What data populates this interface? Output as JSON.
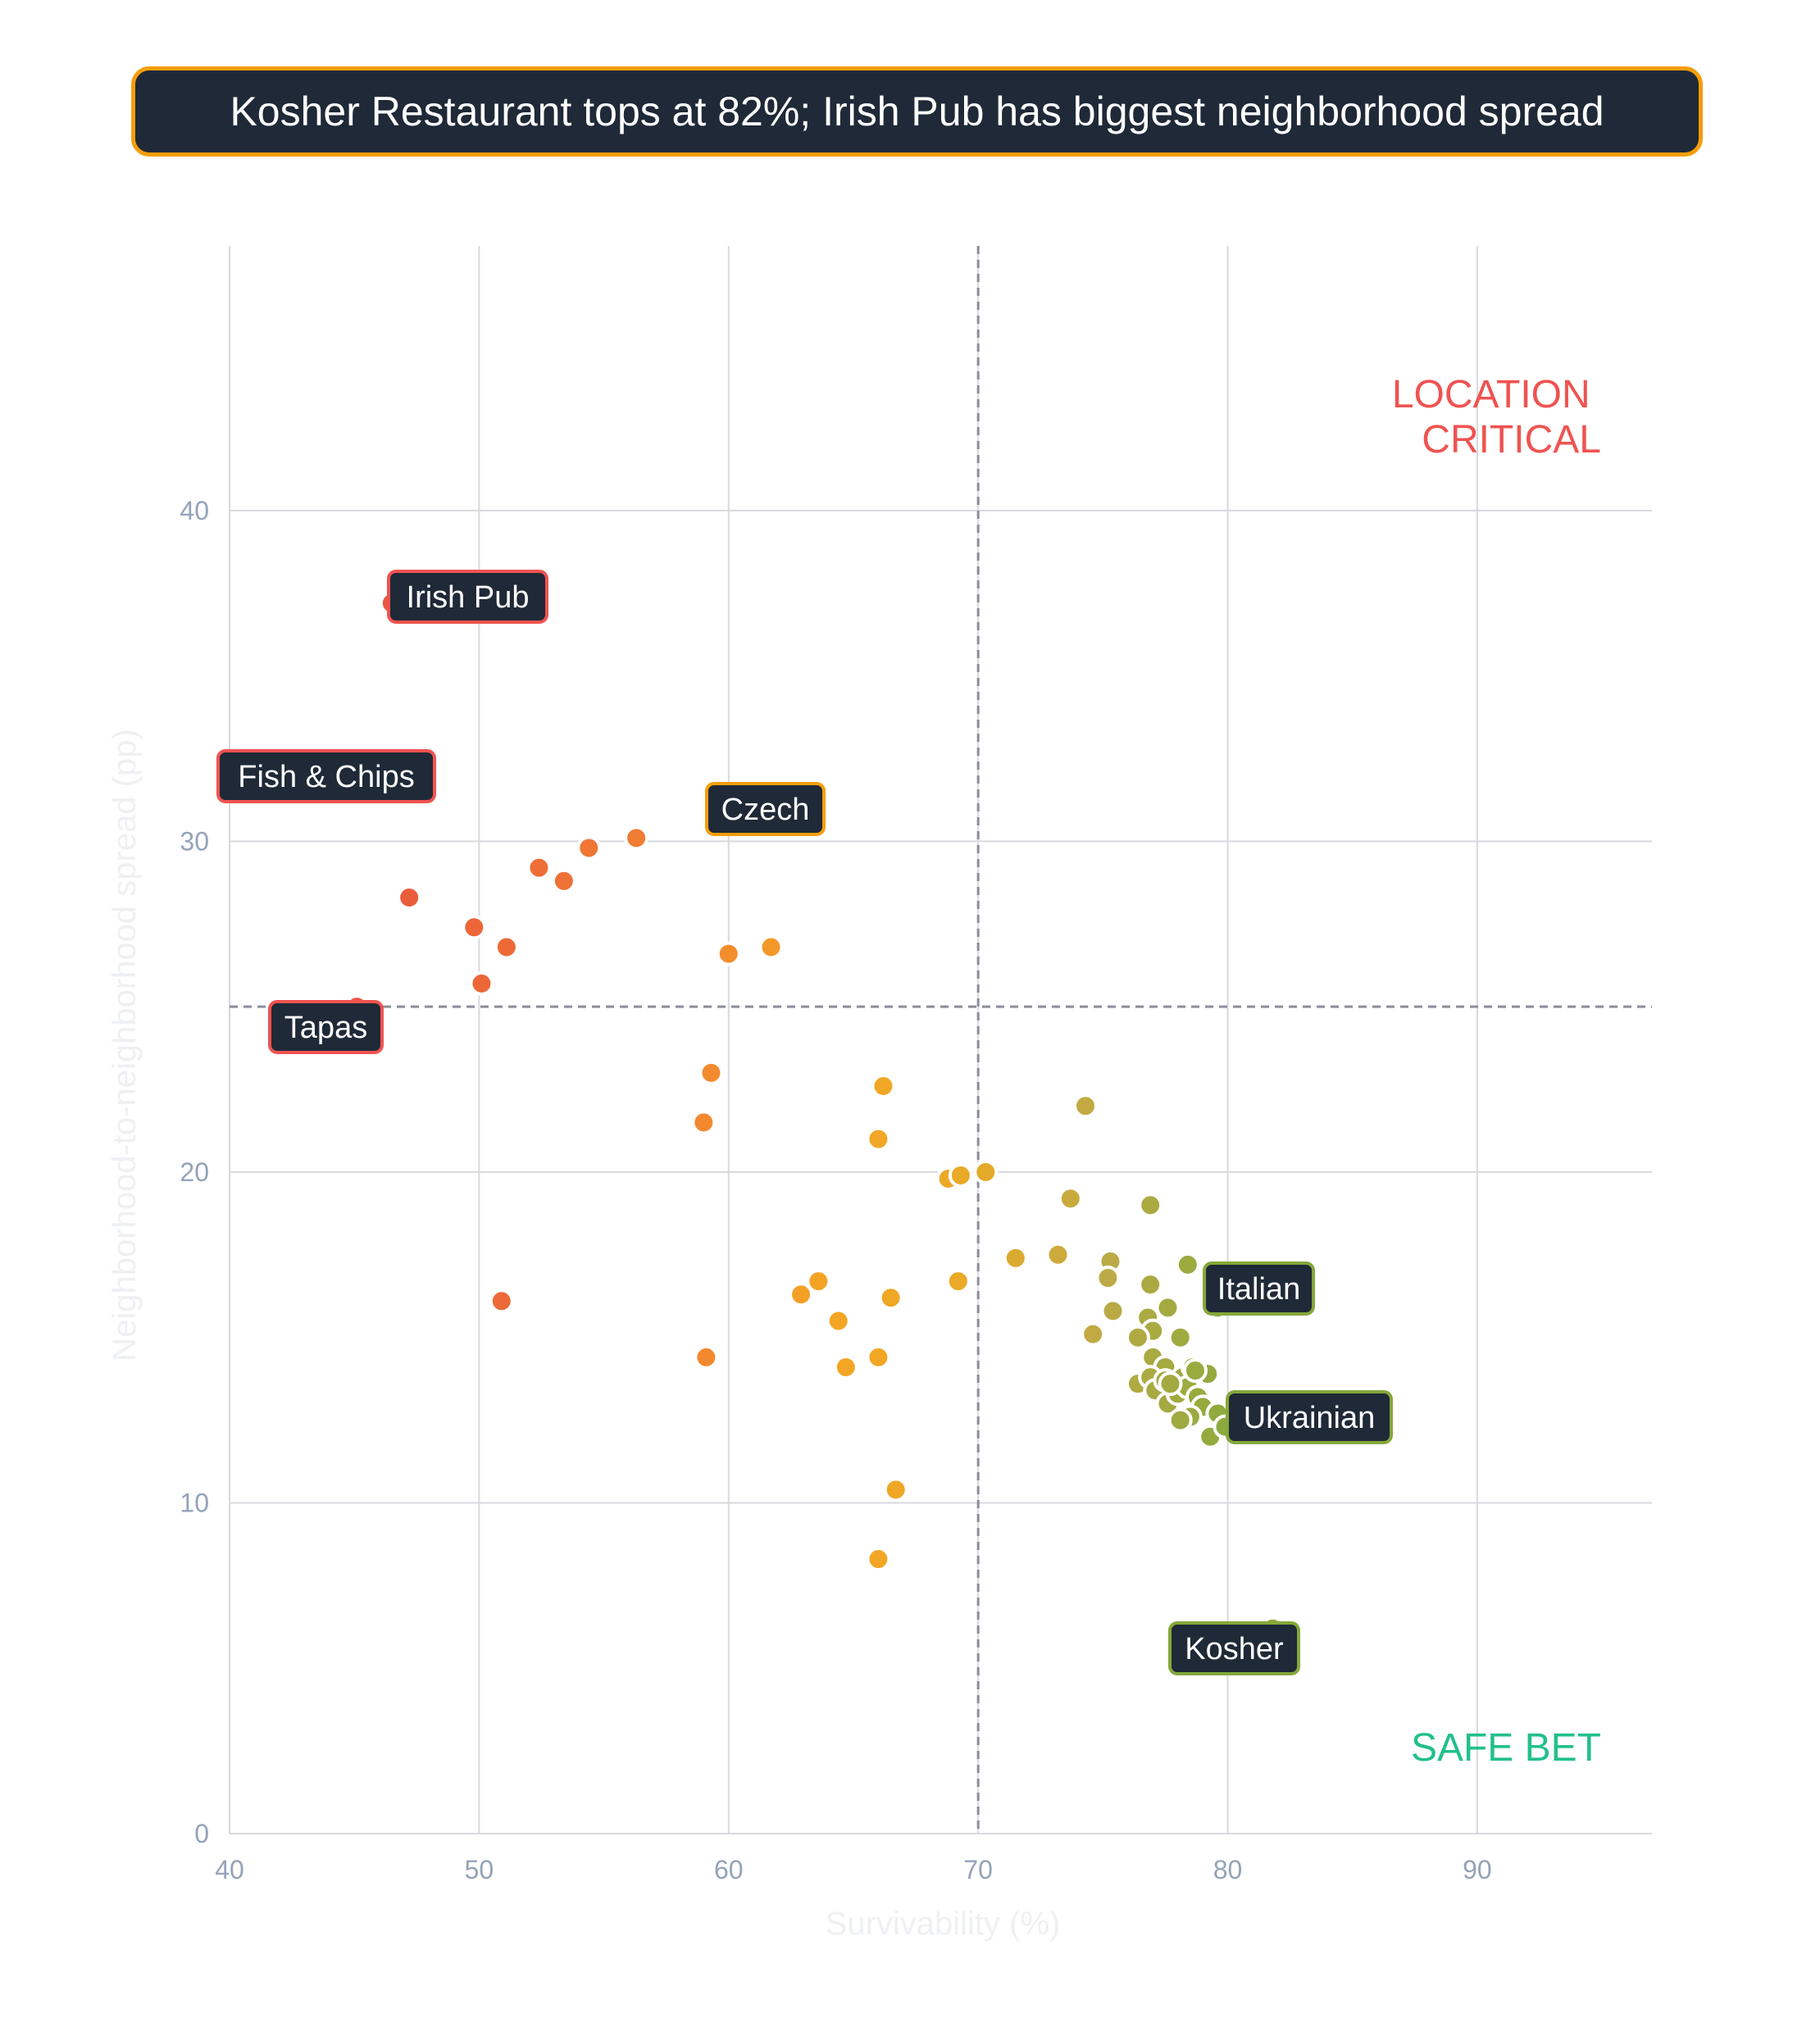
{
  "title": "Kosher Restaurant tops at 82%; Irish Pub has biggest neighborhood spread",
  "colors": {
    "title_bg": "#1f2937",
    "title_border": "#f59e0b",
    "location_critical": "#ef5350",
    "safe_bet": "#22c08a",
    "gridline": "#d7d9de",
    "reference_line": "#8b8e99"
  },
  "chart_data": {
    "type": "scatter",
    "title": "Kosher Restaurant tops at 82%; Irish Pub has biggest neighborhood spread",
    "xlabel": "Survivability (%)",
    "ylabel": "Neighborhood-to-neighborhood spread (pp)",
    "xlim": [
      40,
      97
    ],
    "ylim": [
      0,
      48
    ],
    "xticks": [
      40,
      50,
      60,
      70,
      80,
      90
    ],
    "yticks": [
      0,
      10,
      20,
      30,
      40
    ],
    "grid": true,
    "reference_lines": {
      "x": 70,
      "y": 25
    },
    "quadrant_labels": {
      "location_critical": [
        "LOCATION",
        "CRITICAL"
      ],
      "safe_bet": "SAFE BET"
    },
    "points": [
      {
        "x": 46.5,
        "y": 37.2
      },
      {
        "x": 45.8,
        "y": 32.5
      },
      {
        "x": 47.2,
        "y": 28.3
      },
      {
        "x": 49.8,
        "y": 27.4
      },
      {
        "x": 51.1,
        "y": 26.8
      },
      {
        "x": 50.1,
        "y": 25.7
      },
      {
        "x": 52.4,
        "y": 29.2
      },
      {
        "x": 53.4,
        "y": 28.8
      },
      {
        "x": 54.4,
        "y": 29.8
      },
      {
        "x": 56.3,
        "y": 30.1
      },
      {
        "x": 60.0,
        "y": 26.6
      },
      {
        "x": 61.7,
        "y": 26.8
      },
      {
        "x": 45.1,
        "y": 25.0
      },
      {
        "x": 50.9,
        "y": 16.1
      },
      {
        "x": 59.3,
        "y": 23.0
      },
      {
        "x": 59.0,
        "y": 21.5
      },
      {
        "x": 59.1,
        "y": 14.4
      },
      {
        "x": 62.9,
        "y": 16.3
      },
      {
        "x": 63.6,
        "y": 16.7
      },
      {
        "x": 64.4,
        "y": 15.5
      },
      {
        "x": 64.7,
        "y": 14.1
      },
      {
        "x": 66.0,
        "y": 14.4
      },
      {
        "x": 66.5,
        "y": 16.2
      },
      {
        "x": 66.0,
        "y": 21.0
      },
      {
        "x": 66.2,
        "y": 22.6
      },
      {
        "x": 66.7,
        "y": 10.4
      },
      {
        "x": 66.0,
        "y": 8.3
      },
      {
        "x": 68.8,
        "y": 19.8
      },
      {
        "x": 69.3,
        "y": 19.9
      },
      {
        "x": 70.3,
        "y": 20.0
      },
      {
        "x": 69.2,
        "y": 16.7
      },
      {
        "x": 71.5,
        "y": 17.4
      },
      {
        "x": 73.2,
        "y": 17.5
      },
      {
        "x": 73.7,
        "y": 19.2
      },
      {
        "x": 74.3,
        "y": 22.0
      },
      {
        "x": 75.3,
        "y": 17.3
      },
      {
        "x": 75.2,
        "y": 16.8
      },
      {
        "x": 75.4,
        "y": 15.8
      },
      {
        "x": 74.6,
        "y": 15.1
      },
      {
        "x": 76.9,
        "y": 19.0
      },
      {
        "x": 76.9,
        "y": 16.6
      },
      {
        "x": 77.6,
        "y": 15.9
      },
      {
        "x": 76.8,
        "y": 15.6
      },
      {
        "x": 77.0,
        "y": 15.2
      },
      {
        "x": 76.4,
        "y": 15.0
      },
      {
        "x": 77.0,
        "y": 14.4
      },
      {
        "x": 77.5,
        "y": 14.1
      },
      {
        "x": 78.1,
        "y": 15.0
      },
      {
        "x": 78.4,
        "y": 17.2
      },
      {
        "x": 79.6,
        "y": 15.9
      },
      {
        "x": 76.4,
        "y": 13.6
      },
      {
        "x": 76.9,
        "y": 13.8
      },
      {
        "x": 77.1,
        "y": 13.4
      },
      {
        "x": 77.6,
        "y": 13.0
      },
      {
        "x": 77.5,
        "y": 13.7
      },
      {
        "x": 78.0,
        "y": 13.3
      },
      {
        "x": 78.2,
        "y": 13.8
      },
      {
        "x": 78.4,
        "y": 13.5
      },
      {
        "x": 78.6,
        "y": 14.1
      },
      {
        "x": 78.8,
        "y": 13.2
      },
      {
        "x": 79.2,
        "y": 13.9
      },
      {
        "x": 79.0,
        "y": 12.9
      },
      {
        "x": 78.5,
        "y": 12.6
      },
      {
        "x": 78.1,
        "y": 12.5
      },
      {
        "x": 79.6,
        "y": 12.7
      },
      {
        "x": 79.3,
        "y": 12.0
      },
      {
        "x": 79.9,
        "y": 12.3
      },
      {
        "x": 78.7,
        "y": 14.0
      },
      {
        "x": 77.7,
        "y": 13.6
      },
      {
        "x": 81.8,
        "y": 6.2
      }
    ],
    "annotations": [
      {
        "label": "Irish Pub",
        "x": 46.5,
        "y": 37.2,
        "border": "#ef5350"
      },
      {
        "label": "Fish & Chips",
        "x": 45.8,
        "y": 32.5,
        "border": "#ef5350"
      },
      {
        "label": "Czech",
        "x": 62.4,
        "y": 30.6,
        "border": "#f59e0b"
      },
      {
        "label": "Tapas",
        "x": 45.1,
        "y": 25.0,
        "border": "#ef5350"
      },
      {
        "label": "Italian",
        "x": 79.6,
        "y": 16.2,
        "border": "#84a83a"
      },
      {
        "label": "Ukrainian",
        "x": 79.9,
        "y": 12.3,
        "border": "#84a83a"
      },
      {
        "label": "Kosher",
        "x": 81.8,
        "y": 6.2,
        "border": "#84a83a"
      }
    ]
  }
}
